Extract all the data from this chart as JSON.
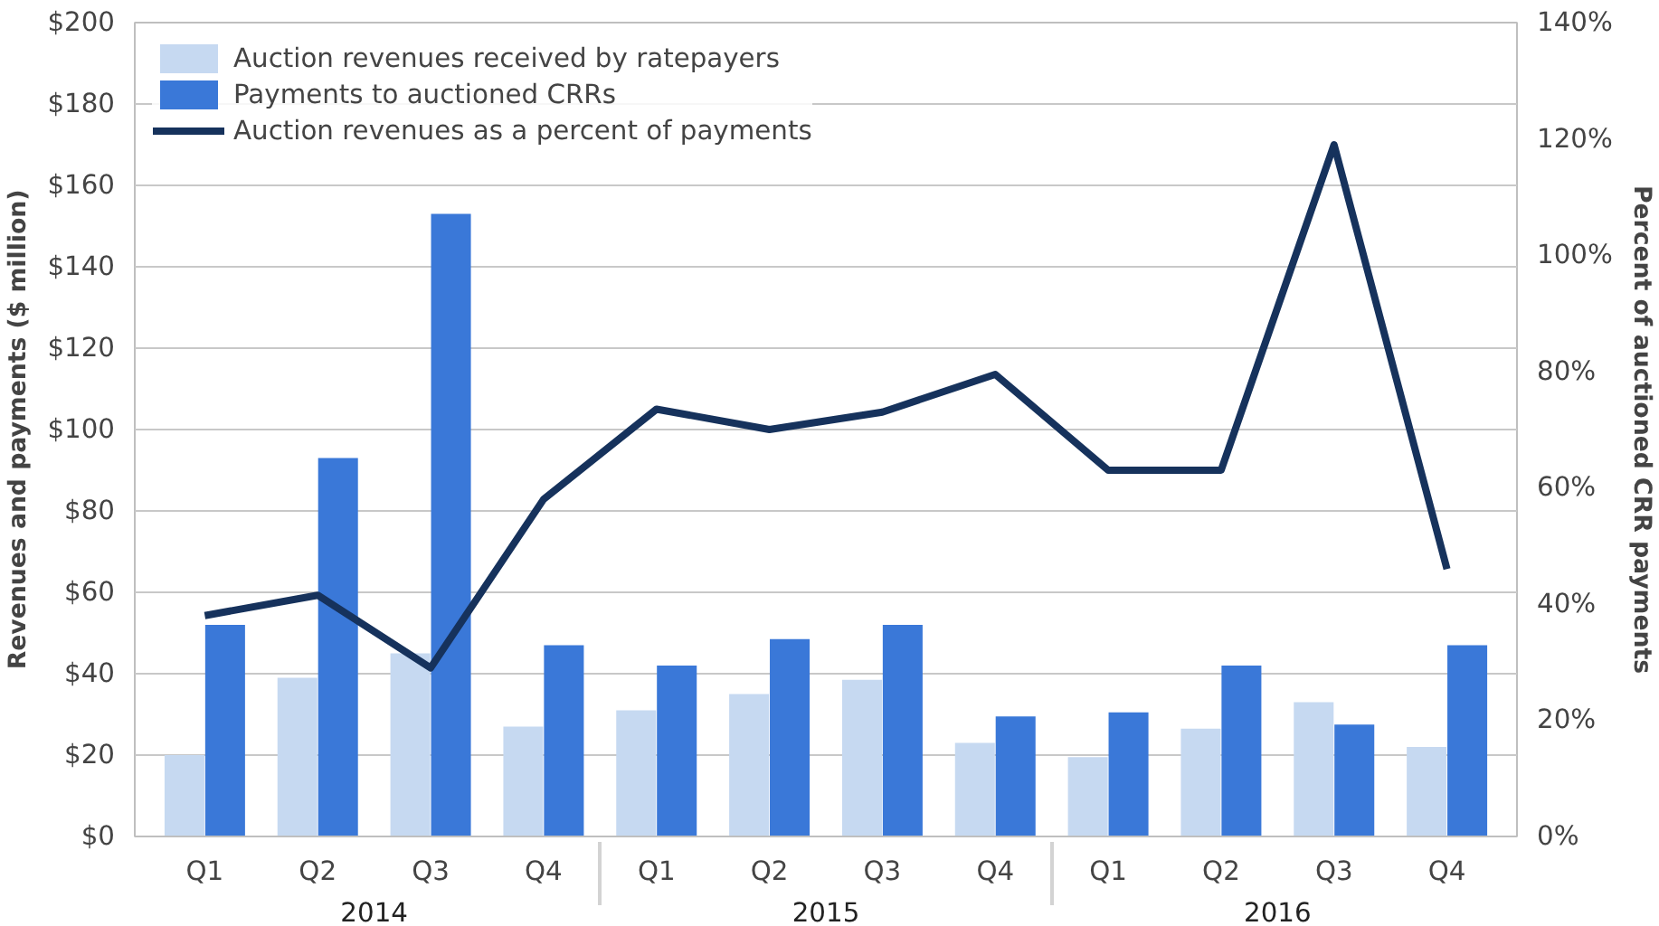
{
  "chart_data": {
    "type": "bar",
    "categories": [
      "Q1",
      "Q2",
      "Q3",
      "Q4",
      "Q1",
      "Q2",
      "Q3",
      "Q4",
      "Q1",
      "Q2",
      "Q3",
      "Q4"
    ],
    "annotations": [
      "2014",
      "2015",
      "2016"
    ],
    "ylabel": "Revenues and payments ($ million)",
    "y2label": "Percent of auctioned CRR payments",
    "series": [
      {
        "name": "Auction revenues received by ratepayers",
        "color": "#c6d9f1",
        "values": [
          20,
          39,
          45,
          27,
          31,
          35,
          38.5,
          23,
          19.5,
          26.5,
          33,
          22
        ]
      },
      {
        "name": "Payments to auctioned CRRs",
        "color": "#3a78d8",
        "values": [
          52,
          93,
          153,
          47,
          42,
          48.5,
          52,
          29.5,
          30.5,
          42,
          27.5,
          47
        ]
      },
      {
        "name": "Auction revenues as a percent of payments",
        "type": "line",
        "axis": "y2",
        "color": "#16325c",
        "values": [
          38,
          41.5,
          29,
          58,
          73.5,
          70,
          73,
          79.5,
          63,
          63,
          119,
          46
        ]
      }
    ],
    "ylim": [
      0,
      200
    ],
    "yticks": [
      {
        "value": 0,
        "label": "$0"
      },
      {
        "value": 20,
        "label": "$20"
      },
      {
        "value": 40,
        "label": "$40"
      },
      {
        "value": 60,
        "label": "$60"
      },
      {
        "value": 80,
        "label": "$80"
      },
      {
        "value": 100,
        "label": "$100"
      },
      {
        "value": 120,
        "label": "$120"
      },
      {
        "value": 140,
        "label": "$140"
      },
      {
        "value": 160,
        "label": "$160"
      },
      {
        "value": 180,
        "label": "$180"
      },
      {
        "value": 200,
        "label": "$200"
      }
    ],
    "y2lim": [
      0,
      140
    ],
    "y2ticks": [
      {
        "value": 0,
        "label": "0%"
      },
      {
        "value": 20,
        "label": "20%"
      },
      {
        "value": 40,
        "label": "40%"
      },
      {
        "value": 60,
        "label": "60%"
      },
      {
        "value": 80,
        "label": "80%"
      },
      {
        "value": 100,
        "label": "100%"
      },
      {
        "value": 120,
        "label": "120%"
      },
      {
        "value": 140,
        "label": "140%"
      }
    ],
    "grid": "y",
    "legend": "top left",
    "line_style": "solid",
    "marker": "none"
  }
}
